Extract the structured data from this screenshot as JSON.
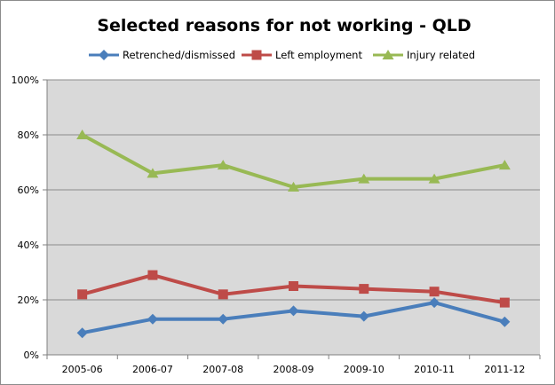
{
  "chart_data": {
    "type": "line",
    "title": "Selected reasons for not working - QLD",
    "xlabel": "",
    "ylabel": "",
    "categories": [
      "2005-06",
      "2006-07",
      "2007-08",
      "2008-09",
      "2009-10",
      "2010-11",
      "2011-12"
    ],
    "ylim": [
      0,
      100
    ],
    "yticks": [
      "0%",
      "20%",
      "40%",
      "60%",
      "80%",
      "100%"
    ],
    "grid": true,
    "legend_position": "top",
    "plot_background": "#d9d9d9",
    "series": [
      {
        "name": "Retrenched/dismissed",
        "color": "#4a7ebb",
        "marker": "diamond",
        "values": [
          8,
          13,
          13,
          16,
          14,
          19,
          12
        ]
      },
      {
        "name": "Left employment",
        "color": "#be4b48",
        "marker": "square",
        "values": [
          22,
          29,
          22,
          25,
          24,
          23,
          19
        ]
      },
      {
        "name": "Injury related",
        "color": "#98b954",
        "marker": "triangle",
        "values": [
          80,
          66,
          69,
          61,
          64,
          64,
          69
        ]
      }
    ]
  }
}
